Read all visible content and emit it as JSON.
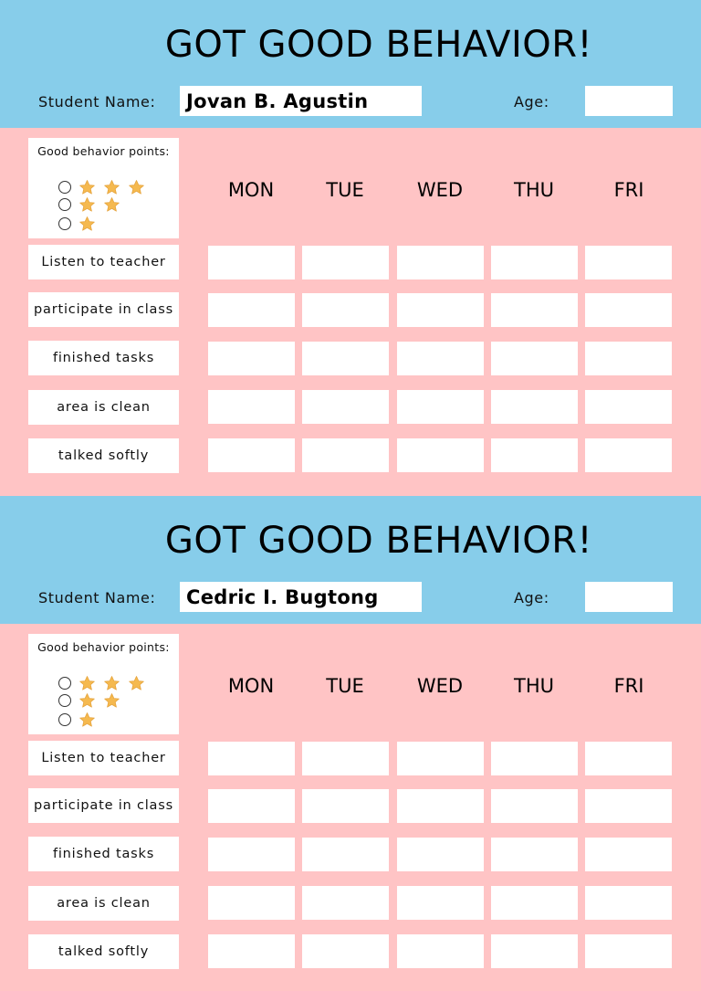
{
  "colors": {
    "header_bg": "#87cdea",
    "body_bg": "#ffc4c5",
    "star": "#f5b94f"
  },
  "charts": [
    {
      "title": "GOT GOOD BEHAVIOR!",
      "student_label": "Student Name:",
      "student_name": "Jovan B. Agustin",
      "age_label": "Age:",
      "age_value": "",
      "legend": {
        "title": "Good behavior points:",
        "levels": [
          {
            "stars": 3,
            "icon": "star-icon"
          },
          {
            "stars": 2,
            "icon": "star-icon"
          },
          {
            "stars": 1,
            "icon": "star-icon"
          }
        ]
      },
      "days": [
        "MON",
        "TUE",
        "WED",
        "THU",
        "FRI"
      ],
      "behaviors": [
        "Listen to teacher",
        "participate in class",
        "finished tasks",
        "area is clean",
        "talked softly"
      ]
    },
    {
      "title": "GOT GOOD BEHAVIOR!",
      "student_label": "Student Name:",
      "student_name": "Cedric I. Bugtong",
      "age_label": "Age:",
      "age_value": "",
      "legend": {
        "title": "Good behavior points:",
        "levels": [
          {
            "stars": 3,
            "icon": "star-icon"
          },
          {
            "stars": 2,
            "icon": "star-icon"
          },
          {
            "stars": 1,
            "icon": "star-icon"
          }
        ]
      },
      "days": [
        "MON",
        "TUE",
        "WED",
        "THU",
        "FRI"
      ],
      "behaviors": [
        "Listen to teacher",
        "participate in class",
        "finished tasks",
        "area is clean",
        "talked softly"
      ]
    }
  ]
}
